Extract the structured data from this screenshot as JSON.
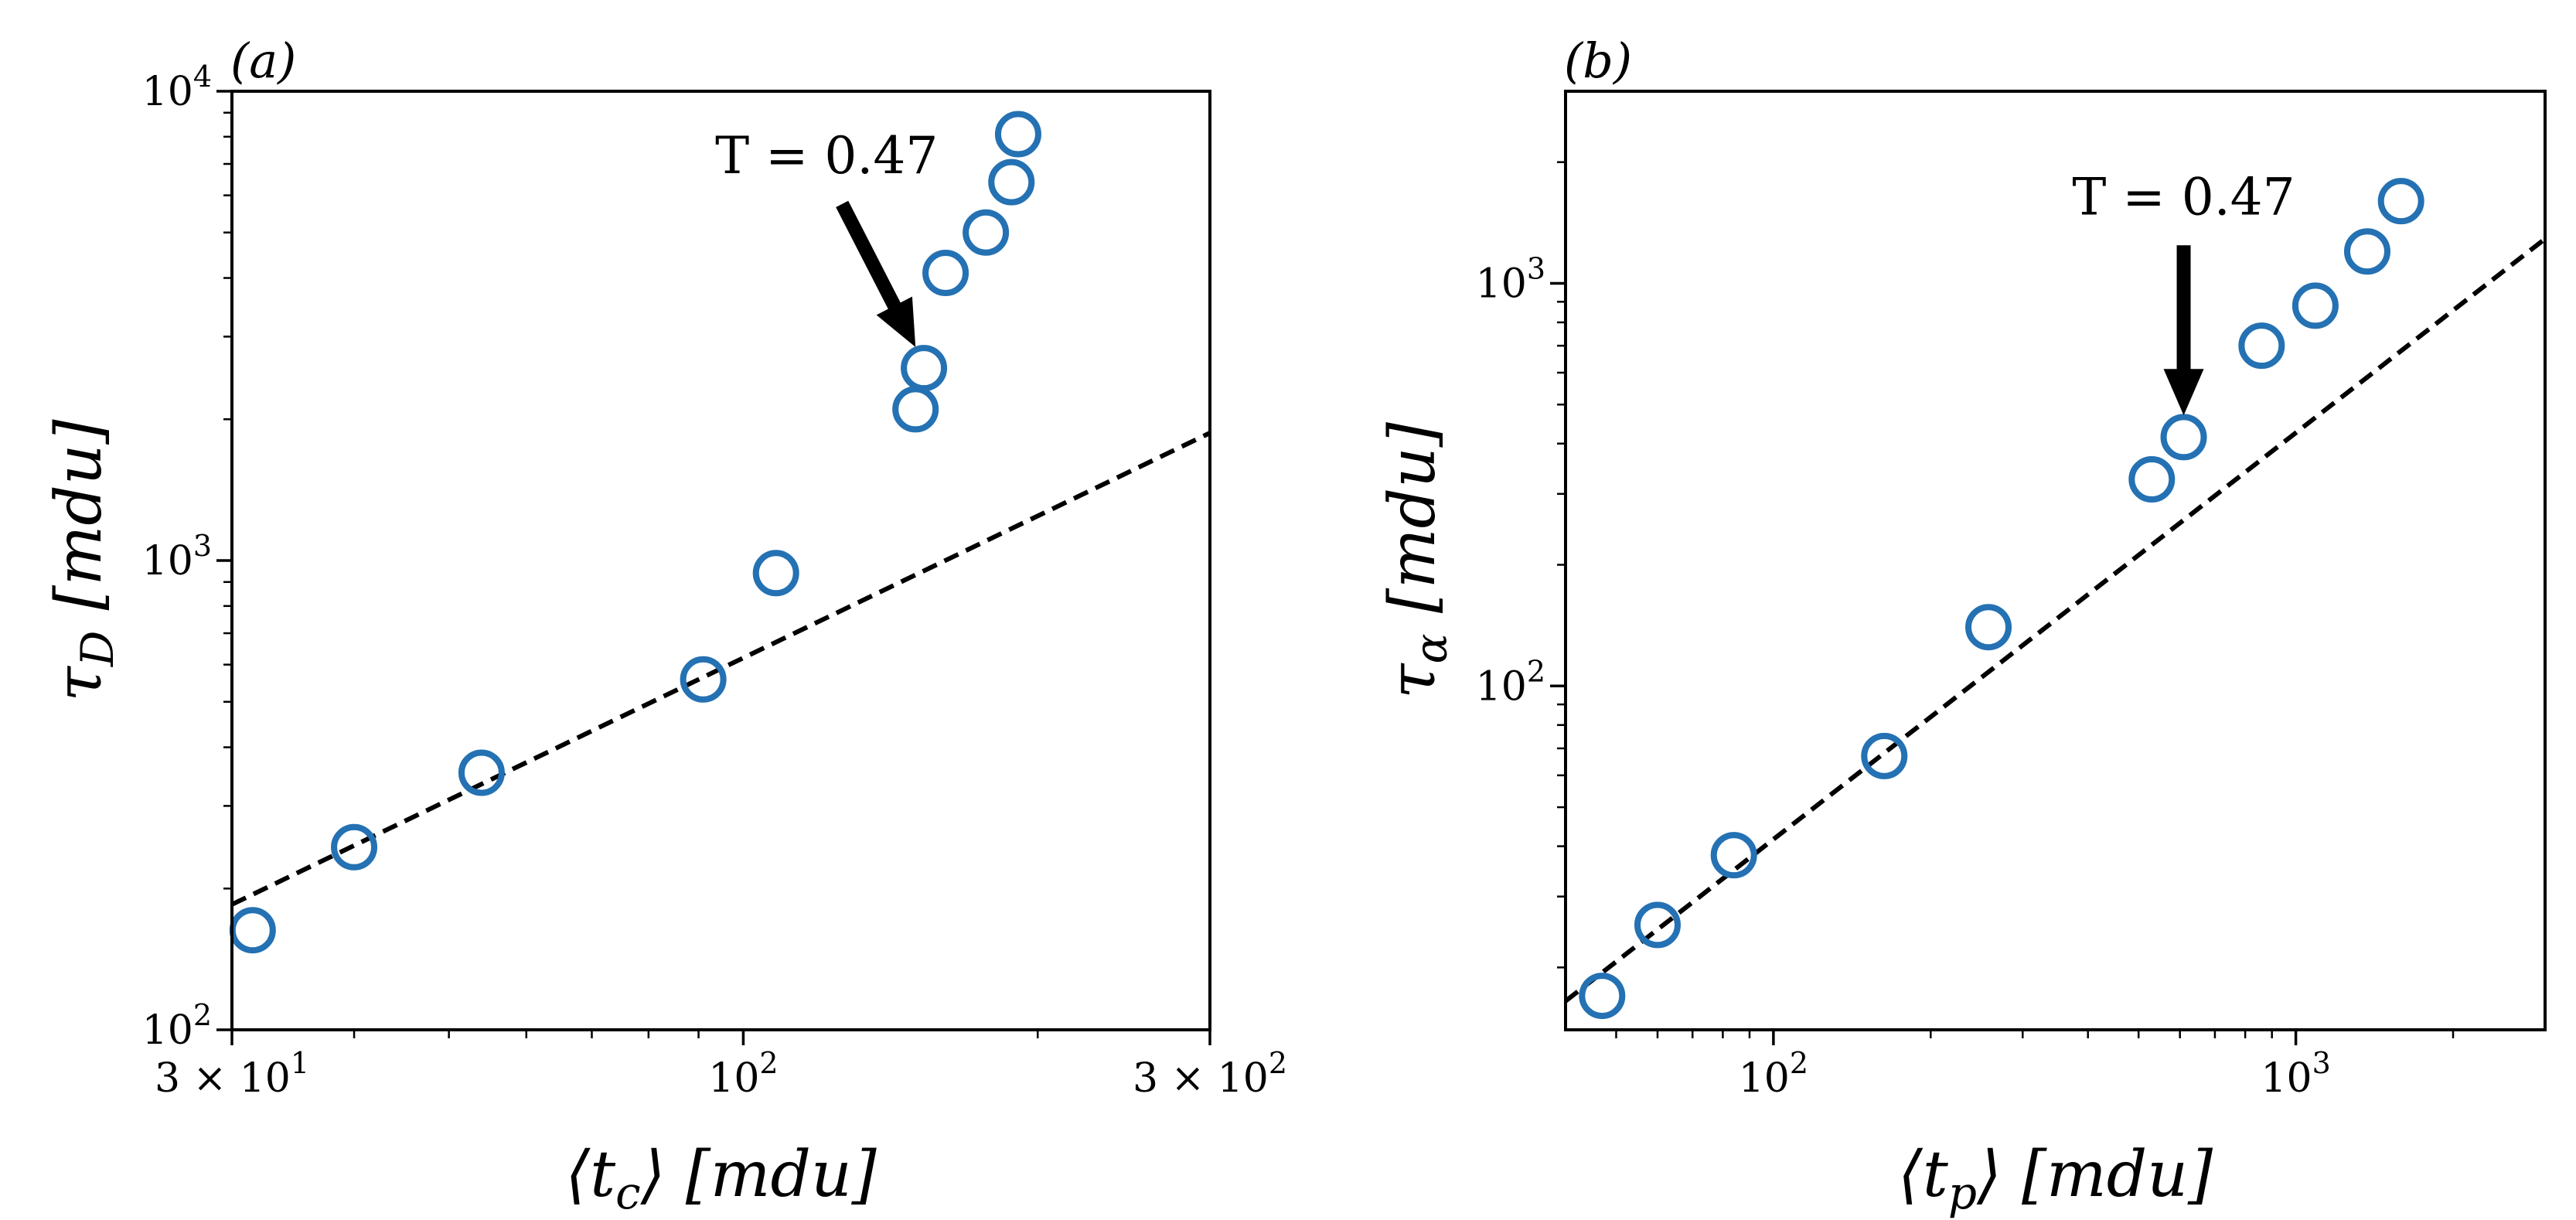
{
  "chart_data": [
    {
      "type": "scatter",
      "panel_label": "(a)",
      "xlabel": "⟨t_c⟩ [mdu]",
      "ylabel": "τ_D [mdu]",
      "x_scale": "log",
      "y_scale": "log",
      "xlim": [
        30,
        300
      ],
      "ylim": [
        100,
        10000
      ],
      "x_ticks": [
        {
          "value": 30,
          "label": "3 × 10^1"
        },
        {
          "value": 100,
          "label": "10^2"
        },
        {
          "value": 300,
          "label": "3 × 10^2"
        }
      ],
      "y_ticks": [
        {
          "value": 100,
          "label": "10^2"
        },
        {
          "value": 1000,
          "label": "10^3"
        },
        {
          "value": 10000,
          "label": "10^4"
        }
      ],
      "series": [
        {
          "x": [
            31.5,
            40,
            54,
            91,
            108,
            150,
            153,
            161,
            177,
            188,
            191
          ],
          "y": [
            163,
            245,
            353,
            558,
            940,
            2100,
            2570,
            4100,
            5000,
            6400,
            8100
          ]
        }
      ],
      "fit_line": {
        "style": "dashed",
        "x": [
          30,
          300
        ],
        "y": [
          185,
          1870
        ]
      },
      "annotation": {
        "text": "T = 0.47",
        "target": {
          "x": 150,
          "y": 2850
        }
      }
    },
    {
      "type": "scatter",
      "panel_label": "(b)",
      "xlabel": "⟨t_p⟩ [mdu]",
      "ylabel": "τ_α [mdu]",
      "x_scale": "log",
      "y_scale": "log",
      "xlim": [
        40,
        3000
      ],
      "ylim": [
        14,
        3000
      ],
      "x_ticks": [
        {
          "value": 100,
          "label": "10^2"
        },
        {
          "value": 1000,
          "label": "10^3"
        }
      ],
      "y_ticks": [
        {
          "value": 100,
          "label": "10^2"
        },
        {
          "value": 1000,
          "label": "10^3"
        }
      ],
      "series": [
        {
          "x": [
            47,
            60,
            84,
            163,
            258,
            530,
            610,
            860,
            1090,
            1370,
            1590
          ],
          "y": [
            17,
            25.5,
            38,
            67,
            140,
            326,
            415,
            700,
            880,
            1200,
            1600
          ]
        }
      ],
      "fit_line": {
        "style": "dashed",
        "x": [
          40,
          3000
        ],
        "y": [
          16.5,
          1290
        ]
      },
      "annotation": {
        "text": "T = 0.47",
        "target": {
          "x": 610,
          "y": 470
        }
      }
    }
  ]
}
